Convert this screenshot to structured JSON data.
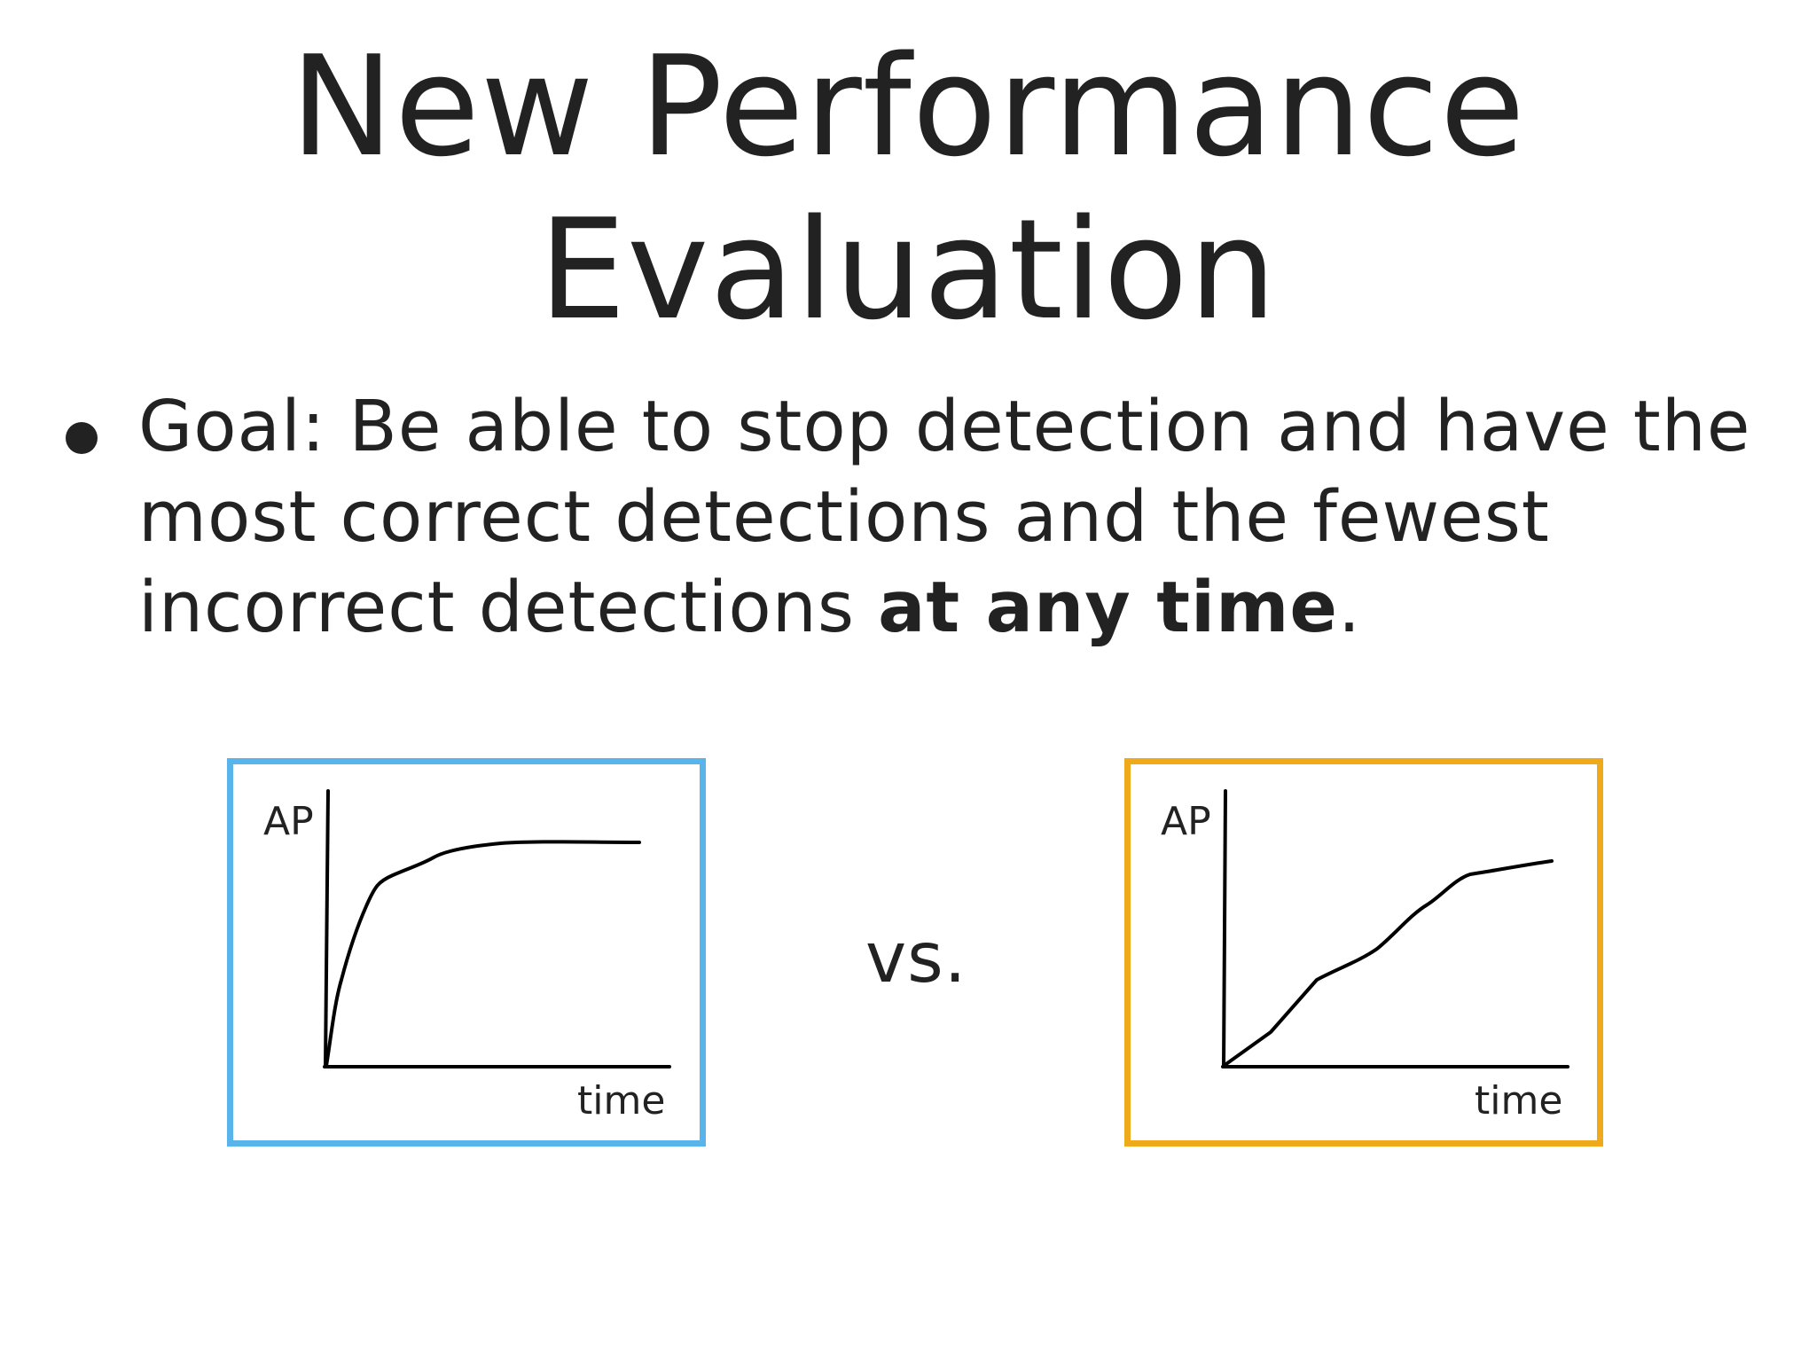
{
  "slide": {
    "title_line1": "New Performance",
    "title_line2": "Evaluation",
    "bullet": {
      "text_regular": "Goal: Be able to stop detection and have the most correct detections and the fewest incorrect detections ",
      "text_bold": "at any time",
      "text_end": "."
    },
    "vs_label": "vs."
  },
  "charts": {
    "left": {
      "border_color": "#5ab4ec",
      "ylabel": "AP",
      "xlabel": "time"
    },
    "right": {
      "border_color": "#efaa1b",
      "ylabel": "AP",
      "xlabel": "time"
    }
  }
}
